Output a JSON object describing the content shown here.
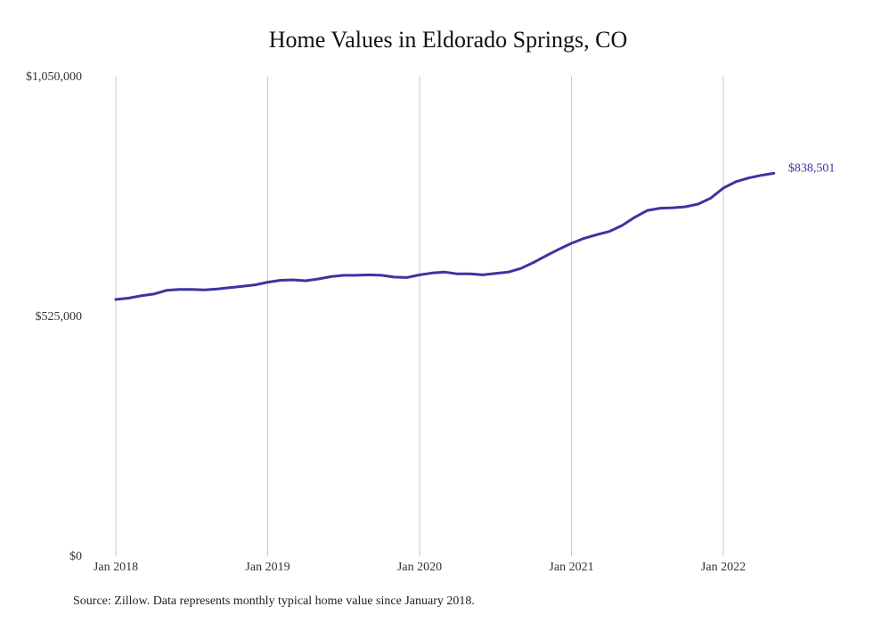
{
  "chart_data": {
    "type": "line",
    "title": "Home Values in Eldorado Springs, CO",
    "xlabel": "",
    "ylabel": "",
    "ylim": [
      0,
      1050000
    ],
    "yticks": [
      "$1,050,000",
      "$525,000",
      "$0"
    ],
    "ytick_values": [
      1050000,
      525000,
      0
    ],
    "xticks": [
      "Jan 2018",
      "Jan 2019",
      "Jan 2020",
      "Jan 2021",
      "Jan 2022"
    ],
    "xtick_dates": [
      "2018-01",
      "2019-01",
      "2020-01",
      "2021-01",
      "2022-01"
    ],
    "grid": "vertical",
    "series": [
      {
        "color": "#3b35a0",
        "x": [
          "2018-01",
          "2018-02",
          "2018-03",
          "2018-04",
          "2018-05",
          "2018-06",
          "2018-07",
          "2018-08",
          "2018-09",
          "2018-10",
          "2018-11",
          "2018-12",
          "2019-01",
          "2019-02",
          "2019-03",
          "2019-04",
          "2019-05",
          "2019-06",
          "2019-07",
          "2019-08",
          "2019-09",
          "2019-10",
          "2019-11",
          "2019-12",
          "2020-01",
          "2020-02",
          "2020-03",
          "2020-04",
          "2020-05",
          "2020-06",
          "2020-07",
          "2020-08",
          "2020-09",
          "2020-10",
          "2020-11",
          "2020-12",
          "2021-01",
          "2021-02",
          "2021-03",
          "2021-04",
          "2021-05",
          "2021-06",
          "2021-07",
          "2021-08",
          "2021-09",
          "2021-10",
          "2021-11",
          "2021-12",
          "2022-01",
          "2022-02",
          "2022-03",
          "2022-04",
          "2022-05"
        ],
        "values": [
          562000,
          565000,
          570000,
          574000,
          582000,
          584000,
          584000,
          583000,
          585000,
          588000,
          591000,
          594000,
          600000,
          604000,
          605000,
          603000,
          607000,
          612000,
          615000,
          615000,
          616000,
          615000,
          611000,
          610000,
          616000,
          620000,
          622000,
          618000,
          618000,
          616000,
          619000,
          622000,
          630000,
          643000,
          658000,
          672000,
          685000,
          696000,
          704000,
          711000,
          724000,
          742000,
          757000,
          762000,
          763000,
          765000,
          771000,
          784000,
          806000,
          820000,
          828000,
          834000,
          838501
        ]
      }
    ],
    "end_label": "$838,501"
  },
  "source_note": "Source: Zillow. Data represents monthly typical home value since January 2018."
}
